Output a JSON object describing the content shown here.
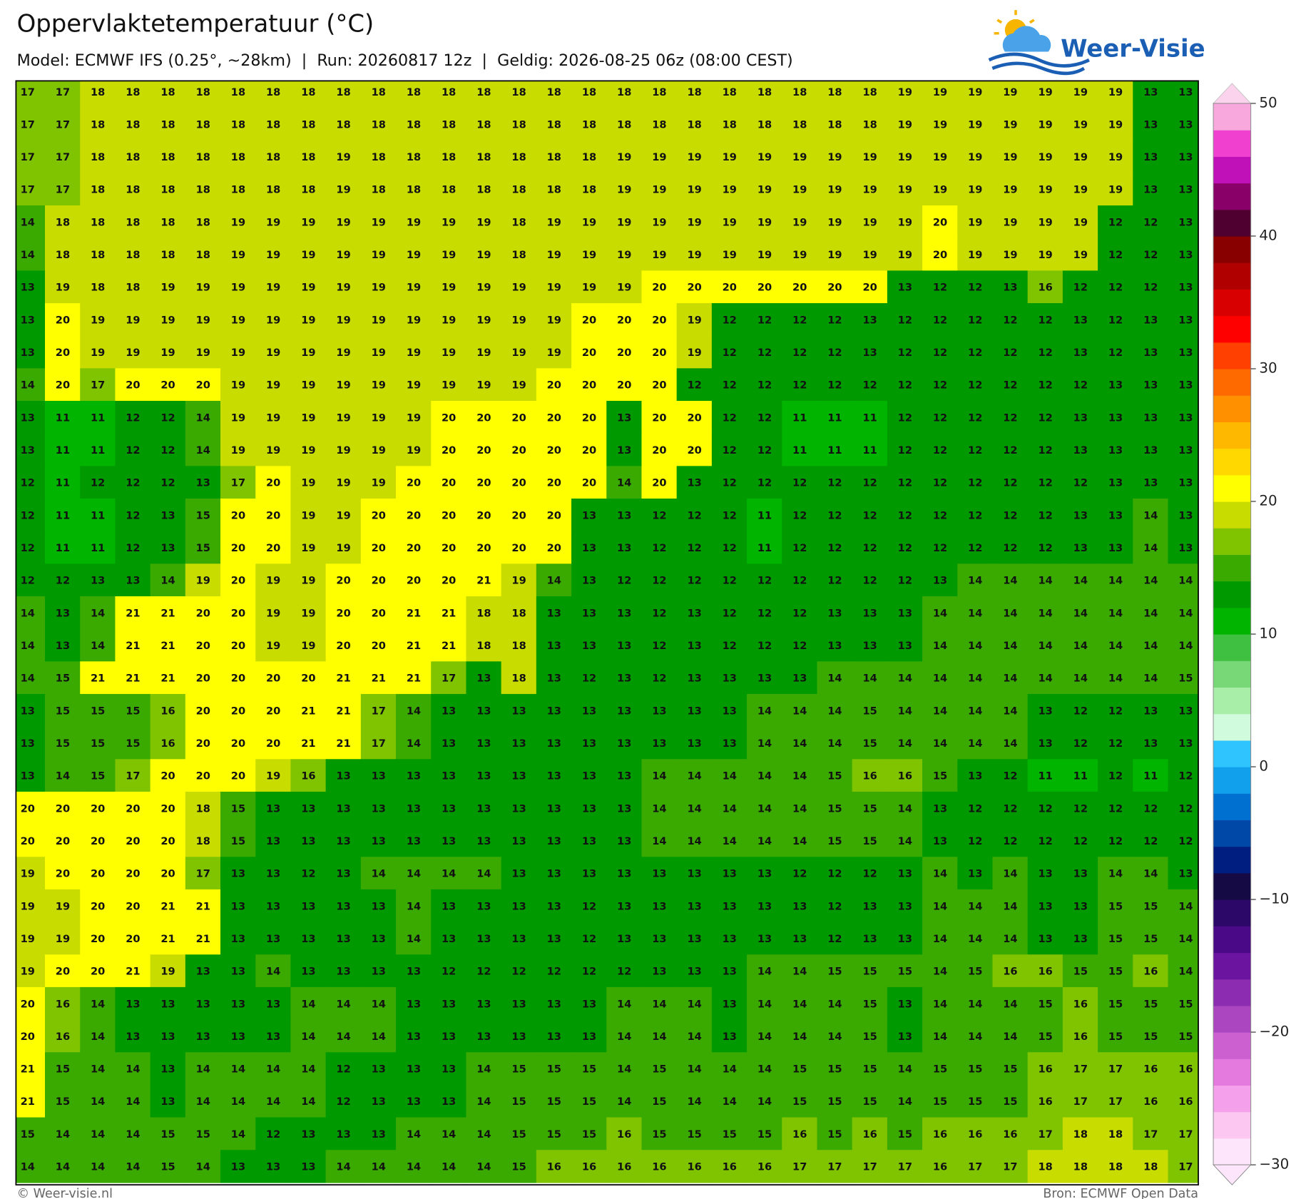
{
  "header": {
    "title": "Oppervlaktetemperatuur (°C)",
    "subtitle": "Model: ECMWF IFS (0.25°, ~28km)  |  Run: 20260817 12z  |  Geldig: 2026-08-25 06z (08:00 CEST)",
    "logo": "Weer-Visie"
  },
  "chart_data": {
    "type": "heatmap",
    "values": [
      [
        17,
        17,
        18,
        18,
        18,
        18,
        18,
        18,
        18,
        18,
        18,
        18,
        18,
        18,
        18,
        18,
        18,
        18,
        18,
        18,
        18,
        18,
        18,
        18,
        18,
        19,
        19,
        19,
        19,
        19,
        19,
        19,
        13,
        13
      ],
      [
        17,
        17,
        18,
        18,
        18,
        18,
        18,
        18,
        18,
        18,
        18,
        18,
        18,
        18,
        18,
        18,
        18,
        18,
        18,
        18,
        18,
        18,
        18,
        18,
        18,
        19,
        19,
        19,
        19,
        19,
        19,
        19,
        13,
        13
      ],
      [
        17,
        17,
        18,
        18,
        18,
        18,
        18,
        18,
        18,
        19,
        18,
        18,
        18,
        18,
        18,
        18,
        18,
        19,
        19,
        19,
        19,
        19,
        19,
        19,
        19,
        19,
        19,
        19,
        19,
        19,
        19,
        19,
        13,
        13
      ],
      [
        17,
        17,
        18,
        18,
        18,
        18,
        18,
        18,
        18,
        19,
        18,
        18,
        18,
        18,
        18,
        18,
        18,
        19,
        19,
        19,
        19,
        19,
        19,
        19,
        19,
        19,
        19,
        19,
        19,
        19,
        19,
        19,
        13,
        13
      ],
      [
        14,
        18,
        18,
        18,
        18,
        18,
        19,
        19,
        19,
        19,
        19,
        19,
        19,
        19,
        18,
        19,
        19,
        19,
        19,
        19,
        19,
        19,
        19,
        19,
        19,
        19,
        20,
        19,
        19,
        19,
        19,
        12,
        12,
        13
      ],
      [
        14,
        18,
        18,
        18,
        18,
        18,
        19,
        19,
        19,
        19,
        19,
        19,
        19,
        19,
        18,
        19,
        19,
        19,
        19,
        19,
        19,
        19,
        19,
        19,
        19,
        19,
        20,
        19,
        19,
        19,
        19,
        12,
        12,
        13
      ],
      [
        13,
        19,
        18,
        18,
        19,
        19,
        19,
        19,
        19,
        19,
        19,
        19,
        19,
        19,
        19,
        19,
        19,
        19,
        20,
        20,
        20,
        20,
        20,
        20,
        20,
        13,
        12,
        12,
        13,
        16,
        12,
        12,
        12,
        13
      ],
      [
        13,
        20,
        19,
        19,
        19,
        19,
        19,
        19,
        19,
        19,
        19,
        19,
        19,
        19,
        19,
        19,
        20,
        20,
        20,
        19,
        12,
        12,
        12,
        12,
        13,
        12,
        12,
        12,
        12,
        12,
        13,
        12,
        13,
        13
      ],
      [
        13,
        20,
        19,
        19,
        19,
        19,
        19,
        19,
        19,
        19,
        19,
        19,
        19,
        19,
        19,
        19,
        20,
        20,
        20,
        19,
        12,
        12,
        12,
        12,
        13,
        12,
        12,
        12,
        12,
        12,
        13,
        12,
        13,
        13
      ],
      [
        14,
        20,
        17,
        20,
        20,
        20,
        19,
        19,
        19,
        19,
        19,
        19,
        19,
        19,
        19,
        20,
        20,
        20,
        20,
        12,
        12,
        12,
        12,
        12,
        12,
        12,
        12,
        12,
        12,
        12,
        12,
        13,
        13,
        13
      ],
      [
        13,
        11,
        11,
        12,
        12,
        14,
        19,
        19,
        19,
        19,
        19,
        19,
        20,
        20,
        20,
        20,
        20,
        13,
        20,
        20,
        12,
        12,
        11,
        11,
        11,
        12,
        12,
        12,
        12,
        12,
        13,
        13,
        13,
        13
      ],
      [
        13,
        11,
        11,
        12,
        12,
        14,
        19,
        19,
        19,
        19,
        19,
        19,
        20,
        20,
        20,
        20,
        20,
        13,
        20,
        20,
        12,
        12,
        11,
        11,
        11,
        12,
        12,
        12,
        12,
        12,
        13,
        13,
        13,
        13
      ],
      [
        12,
        11,
        12,
        12,
        12,
        13,
        17,
        20,
        19,
        19,
        19,
        20,
        20,
        20,
        20,
        20,
        20,
        14,
        20,
        13,
        12,
        12,
        12,
        12,
        12,
        12,
        12,
        12,
        12,
        12,
        12,
        13,
        13,
        13
      ],
      [
        12,
        11,
        11,
        12,
        13,
        15,
        20,
        20,
        19,
        19,
        20,
        20,
        20,
        20,
        20,
        20,
        13,
        13,
        12,
        12,
        12,
        11,
        12,
        12,
        12,
        12,
        12,
        12,
        12,
        12,
        13,
        13,
        14,
        13
      ],
      [
        12,
        11,
        11,
        12,
        13,
        15,
        20,
        20,
        19,
        19,
        20,
        20,
        20,
        20,
        20,
        20,
        13,
        13,
        12,
        12,
        12,
        11,
        12,
        12,
        12,
        12,
        12,
        12,
        12,
        12,
        13,
        13,
        14,
        13
      ],
      [
        12,
        12,
        13,
        13,
        14,
        19,
        20,
        19,
        19,
        20,
        20,
        20,
        20,
        21,
        19,
        14,
        13,
        12,
        12,
        12,
        12,
        12,
        12,
        12,
        12,
        12,
        13,
        14,
        14,
        14,
        14,
        14,
        14,
        14
      ],
      [
        14,
        13,
        14,
        21,
        21,
        20,
        20,
        19,
        19,
        20,
        20,
        21,
        21,
        18,
        18,
        13,
        13,
        13,
        12,
        13,
        12,
        12,
        12,
        13,
        13,
        13,
        14,
        14,
        14,
        14,
        14,
        14,
        14,
        14
      ],
      [
        14,
        13,
        14,
        21,
        21,
        20,
        20,
        19,
        19,
        20,
        20,
        21,
        21,
        18,
        18,
        13,
        13,
        13,
        12,
        13,
        12,
        12,
        12,
        13,
        13,
        13,
        14,
        14,
        14,
        14,
        14,
        14,
        14,
        14
      ],
      [
        14,
        15,
        21,
        21,
        21,
        20,
        20,
        20,
        20,
        21,
        21,
        21,
        17,
        13,
        18,
        13,
        12,
        13,
        12,
        13,
        13,
        13,
        13,
        14,
        14,
        14,
        14,
        14,
        14,
        14,
        14,
        14,
        14,
        15
      ],
      [
        13,
        15,
        15,
        15,
        16,
        20,
        20,
        20,
        21,
        21,
        17,
        14,
        13,
        13,
        13,
        13,
        13,
        13,
        13,
        13,
        13,
        14,
        14,
        14,
        15,
        14,
        14,
        14,
        14,
        13,
        12,
        12,
        13,
        13
      ],
      [
        13,
        15,
        15,
        15,
        16,
        20,
        20,
        20,
        21,
        21,
        17,
        14,
        13,
        13,
        13,
        13,
        13,
        13,
        13,
        13,
        13,
        14,
        14,
        14,
        15,
        14,
        14,
        14,
        14,
        13,
        12,
        12,
        13,
        13
      ],
      [
        13,
        14,
        15,
        17,
        20,
        20,
        20,
        19,
        16,
        13,
        13,
        13,
        13,
        13,
        13,
        13,
        13,
        13,
        14,
        14,
        14,
        14,
        14,
        15,
        16,
        16,
        15,
        13,
        12,
        11,
        11,
        12,
        11,
        12
      ],
      [
        20,
        20,
        20,
        20,
        20,
        18,
        15,
        13,
        13,
        13,
        13,
        13,
        13,
        13,
        13,
        13,
        13,
        13,
        14,
        14,
        14,
        14,
        14,
        15,
        15,
        14,
        13,
        12,
        12,
        12,
        12,
        12,
        12,
        12
      ],
      [
        20,
        20,
        20,
        20,
        20,
        18,
        15,
        13,
        13,
        13,
        13,
        13,
        13,
        13,
        13,
        13,
        13,
        13,
        14,
        14,
        14,
        14,
        14,
        15,
        15,
        14,
        13,
        12,
        12,
        12,
        12,
        12,
        12,
        12
      ],
      [
        19,
        20,
        20,
        20,
        20,
        17,
        13,
        13,
        12,
        13,
        14,
        14,
        14,
        14,
        13,
        13,
        13,
        13,
        13,
        13,
        13,
        13,
        12,
        12,
        12,
        13,
        14,
        13,
        14,
        13,
        13,
        14,
        14,
        13
      ],
      [
        19,
        19,
        20,
        20,
        21,
        21,
        13,
        13,
        13,
        13,
        13,
        14,
        13,
        13,
        13,
        13,
        12,
        13,
        13,
        13,
        13,
        13,
        13,
        12,
        13,
        13,
        14,
        14,
        14,
        13,
        13,
        15,
        15,
        14
      ],
      [
        19,
        19,
        20,
        20,
        21,
        21,
        13,
        13,
        13,
        13,
        13,
        14,
        13,
        13,
        13,
        13,
        12,
        13,
        13,
        13,
        13,
        13,
        13,
        12,
        13,
        13,
        14,
        14,
        14,
        13,
        13,
        15,
        15,
        14
      ],
      [
        19,
        20,
        20,
        21,
        19,
        13,
        13,
        14,
        13,
        13,
        13,
        13,
        12,
        12,
        12,
        12,
        12,
        12,
        13,
        13,
        13,
        14,
        14,
        15,
        15,
        15,
        14,
        15,
        16,
        16,
        15,
        15,
        16,
        14
      ],
      [
        20,
        16,
        14,
        13,
        13,
        13,
        13,
        13,
        14,
        14,
        14,
        13,
        13,
        13,
        13,
        13,
        13,
        14,
        14,
        14,
        13,
        14,
        14,
        14,
        15,
        13,
        14,
        14,
        14,
        15,
        16,
        15,
        15,
        15
      ],
      [
        20,
        16,
        14,
        13,
        13,
        13,
        13,
        13,
        14,
        14,
        14,
        13,
        13,
        13,
        13,
        13,
        13,
        14,
        14,
        14,
        13,
        14,
        14,
        14,
        15,
        13,
        14,
        14,
        14,
        15,
        16,
        15,
        15,
        15
      ],
      [
        21,
        15,
        14,
        14,
        13,
        14,
        14,
        14,
        14,
        12,
        13,
        13,
        13,
        14,
        15,
        15,
        15,
        14,
        15,
        14,
        14,
        14,
        15,
        15,
        15,
        14,
        15,
        15,
        15,
        16,
        17,
        17,
        16,
        16
      ],
      [
        21,
        15,
        14,
        14,
        13,
        14,
        14,
        14,
        14,
        12,
        13,
        13,
        13,
        14,
        15,
        15,
        15,
        14,
        15,
        14,
        14,
        14,
        15,
        15,
        15,
        14,
        15,
        15,
        15,
        16,
        17,
        17,
        16,
        16
      ],
      [
        15,
        14,
        14,
        14,
        15,
        15,
        14,
        12,
        13,
        13,
        13,
        14,
        14,
        14,
        15,
        15,
        15,
        16,
        15,
        15,
        15,
        15,
        16,
        15,
        16,
        15,
        16,
        16,
        16,
        17,
        18,
        18,
        17,
        17
      ],
      [
        14,
        14,
        14,
        14,
        15,
        14,
        13,
        13,
        13,
        14,
        14,
        14,
        14,
        14,
        15,
        16,
        16,
        16,
        16,
        16,
        16,
        16,
        17,
        17,
        17,
        17,
        16,
        17,
        17,
        18,
        18,
        18,
        18,
        17
      ]
    ],
    "colorbar": {
      "lim": [
        -30,
        50
      ],
      "ticks": [
        {
          "value": -30,
          "label": "−30"
        },
        {
          "value": -20,
          "label": "−20"
        },
        {
          "value": -10,
          "label": "−10"
        },
        0,
        10,
        20,
        30,
        40,
        50
      ],
      "colors": [
        "#fde6fb",
        "#fcc8f2",
        "#f5a0ea",
        "#e47ade",
        "#cc60d0",
        "#ac46c0",
        "#8c2cb0",
        "#6a14a0",
        "#4a0a88",
        "#2c0868",
        "#150a44",
        "#001e80",
        "#0048a8",
        "#0070d0",
        "#10a0ec",
        "#30c4ff",
        "#d0fbdc",
        "#a8eea8",
        "#78d878",
        "#40c040",
        "#00b400",
        "#009a00",
        "#3aaa00",
        "#80c400",
        "#c8dc00",
        "#ffff00",
        "#ffd800",
        "#ffb800",
        "#ff9000",
        "#ff6a00",
        "#ff4000",
        "#ff0000",
        "#d80000",
        "#b00000",
        "#880000",
        "#500030",
        "#880068",
        "#c010b8",
        "#f040d0",
        "#f8a8dc"
      ]
    }
  },
  "footer": {
    "left": "© Weer-visie.nl",
    "right": "Bron: ECMWF Open Data"
  }
}
